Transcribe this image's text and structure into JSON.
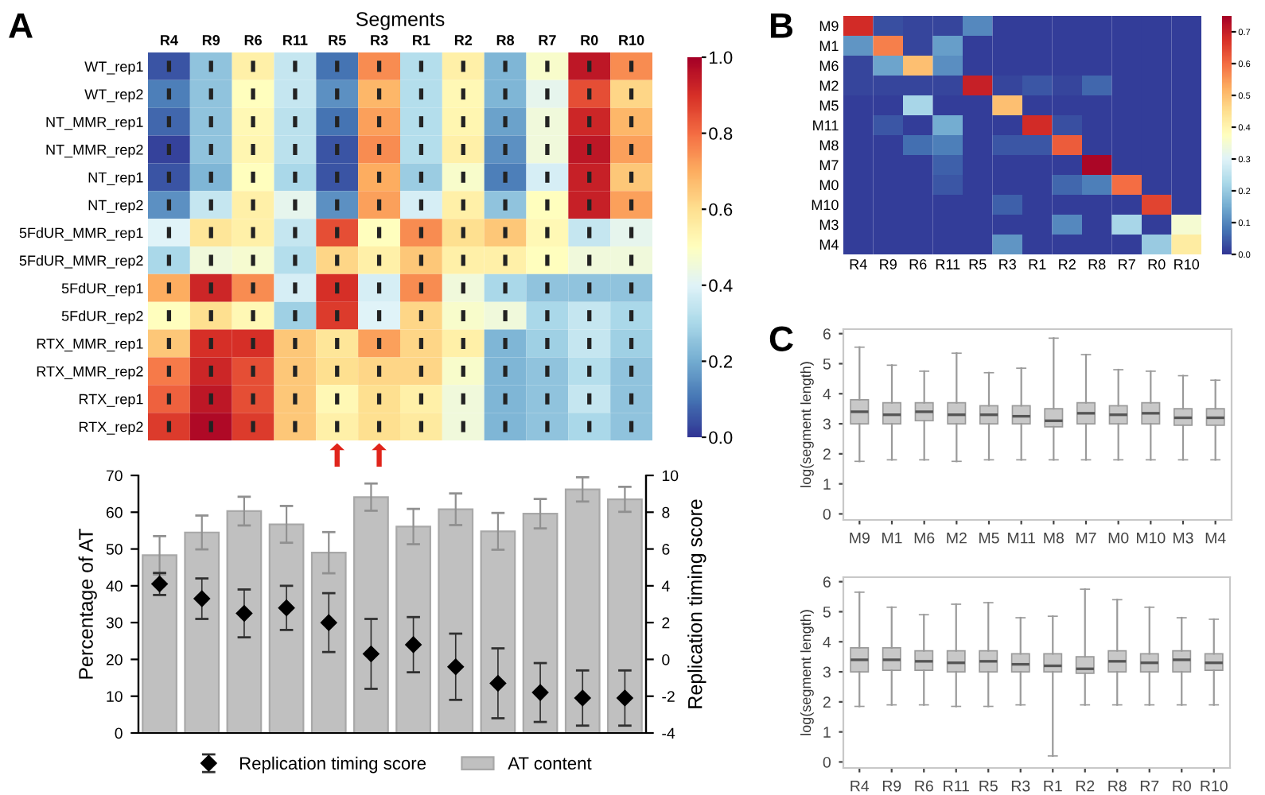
{
  "chart_data": [
    {
      "type": "heatmap",
      "title": "Segments",
      "annotations": [
        "A"
      ],
      "categories": [
        "R4",
        "R9",
        "R6",
        "R11",
        "R5",
        "R3",
        "R1",
        "R2",
        "R8",
        "R7",
        "R0",
        "R10"
      ],
      "y_categories": [
        "WT_rep1",
        "WT_rep2",
        "NT_MMR_rep1",
        "NT_MMR_rep2",
        "NT_rep1",
        "NT_rep2",
        "5FdUR_MMR_rep1",
        "5FdUR_MMR_rep2",
        "5FdUR_rep1",
        "5FdUR_rep2",
        "RTX_MMR_rep1",
        "RTX_MMR_rep2",
        "RTX_rep1",
        "RTX_rep2"
      ],
      "cells": [
        [
          0.05,
          0.25,
          0.55,
          0.35,
          0.1,
          0.75,
          0.32,
          0.55,
          0.22,
          0.48,
          0.95,
          0.75
        ],
        [
          0.12,
          0.25,
          0.5,
          0.35,
          0.15,
          0.68,
          0.32,
          0.52,
          0.22,
          0.42,
          0.85,
          0.62
        ],
        [
          0.08,
          0.25,
          0.52,
          0.33,
          0.1,
          0.72,
          0.32,
          0.53,
          0.18,
          0.45,
          0.92,
          0.68
        ],
        [
          0.02,
          0.25,
          0.53,
          0.33,
          0.05,
          0.75,
          0.32,
          0.55,
          0.15,
          0.45,
          0.95,
          0.72
        ],
        [
          0.05,
          0.22,
          0.5,
          0.3,
          0.05,
          0.7,
          0.27,
          0.48,
          0.12,
          0.38,
          0.93,
          0.65
        ],
        [
          0.15,
          0.35,
          0.55,
          0.42,
          0.15,
          0.72,
          0.38,
          0.55,
          0.25,
          0.5,
          0.93,
          0.72
        ],
        [
          0.4,
          0.58,
          0.55,
          0.35,
          0.85,
          0.5,
          0.75,
          0.6,
          0.65,
          0.52,
          0.35,
          0.42
        ],
        [
          0.3,
          0.45,
          0.47,
          0.32,
          0.62,
          0.55,
          0.65,
          0.55,
          0.55,
          0.5,
          0.45,
          0.45
        ],
        [
          0.7,
          0.92,
          0.75,
          0.38,
          0.9,
          0.38,
          0.75,
          0.45,
          0.3,
          0.25,
          0.25,
          0.25
        ],
        [
          0.5,
          0.6,
          0.52,
          0.28,
          0.88,
          0.4,
          0.62,
          0.48,
          0.45,
          0.3,
          0.35,
          0.3
        ],
        [
          0.65,
          0.9,
          0.9,
          0.65,
          0.58,
          0.72,
          0.62,
          0.55,
          0.22,
          0.28,
          0.35,
          0.28
        ],
        [
          0.78,
          0.92,
          0.85,
          0.65,
          0.6,
          0.62,
          0.62,
          0.48,
          0.22,
          0.25,
          0.32,
          0.25
        ],
        [
          0.82,
          0.95,
          0.85,
          0.65,
          0.52,
          0.6,
          0.55,
          0.45,
          0.22,
          0.25,
          0.35,
          0.25
        ],
        [
          0.88,
          0.98,
          0.88,
          0.65,
          0.55,
          0.6,
          0.57,
          0.45,
          0.22,
          0.25,
          0.3,
          0.25
        ]
      ],
      "clim": [
        0,
        1
      ],
      "cticks": [
        {
          "value": 0,
          "label": "0.0"
        },
        {
          "value": 0.2,
          "label": "0.2"
        },
        {
          "value": 0.4,
          "label": "0.4"
        },
        {
          "value": 0.6,
          "label": "0.6"
        },
        {
          "value": 0.8,
          "label": "0.8"
        },
        {
          "value": 1,
          "label": "1.0"
        }
      ]
    },
    {
      "type": "bar",
      "categories": [
        null,
        null,
        null,
        null,
        null,
        null,
        null,
        null,
        null,
        null,
        null,
        null
      ],
      "ylabel": "Percentage of AT",
      "y2label": "Replication timing score",
      "ylim": [
        0,
        70
      ],
      "yticks": [
        0,
        10,
        20,
        30,
        40,
        50,
        60,
        70
      ],
      "y2lim": [
        -4,
        10
      ],
      "y2ticks": [
        -4,
        -2,
        0,
        2,
        4,
        6,
        8,
        10
      ],
      "legend": "bottom",
      "marker": "diamond",
      "series": [
        {
          "type": "bar",
          "name": "AT content",
          "color": "#c0c0c0",
          "values": [
            48.3,
            54.5,
            60.3,
            56.7,
            49,
            64.1,
            56.1,
            60.8,
            54.8,
            59.6,
            66.2,
            63.5
          ],
          "errors": [
            5.2,
            4.6,
            3.9,
            5,
            5.6,
            3.7,
            4.8,
            4.3,
            5,
            4,
            3.3,
            3.4
          ]
        },
        {
          "type": "scatter",
          "axis": "y2",
          "name": "Replication timing score",
          "color": "#000000",
          "values": [
            4.1,
            3.3,
            2.5,
            2.8,
            2.0,
            0.3,
            0.8,
            -0.4,
            -1.3,
            -1.8,
            -2.1,
            -2.1
          ],
          "errors": [
            0.6,
            1.1,
            1.3,
            1.2,
            1.6,
            1.9,
            1.5,
            1.8,
            1.9,
            1.6,
            1.5,
            1.5
          ]
        }
      ]
    },
    {
      "type": "heatmap",
      "annotations": [
        "B"
      ],
      "categories": [
        "R4",
        "R9",
        "R6",
        "R11",
        "R5",
        "R3",
        "R1",
        "R2",
        "R8",
        "R7",
        "R0",
        "R10"
      ],
      "y_categories": [
        "M9",
        "M1",
        "M6",
        "M2",
        "M5",
        "M11",
        "M8",
        "M7",
        "M0",
        "M10",
        "M3",
        "M4"
      ],
      "cells": [
        [
          0.68,
          0.03,
          0.02,
          0.02,
          0.1,
          0.01,
          0.01,
          0.01,
          0.01,
          0.01,
          0.01,
          0.01
        ],
        [
          0.12,
          0.58,
          0.02,
          0.13,
          0.01,
          0.01,
          0.01,
          0.01,
          0.01,
          0.01,
          0.01,
          0.01
        ],
        [
          0.02,
          0.14,
          0.5,
          0.11,
          0.01,
          0.01,
          0.01,
          0.01,
          0.01,
          0.01,
          0.01,
          0.01
        ],
        [
          0.02,
          0.02,
          0.02,
          0.02,
          0.7,
          0.02,
          0.04,
          0.02,
          0.06,
          0.01,
          0.01,
          0.01
        ],
        [
          0.01,
          0.01,
          0.22,
          0.01,
          0.01,
          0.5,
          0.01,
          0.01,
          0.01,
          0.01,
          0.01,
          0.01
        ],
        [
          0.01,
          0.04,
          0.01,
          0.15,
          0.01,
          0.01,
          0.68,
          0.03,
          0.01,
          0.01,
          0.01,
          0.01
        ],
        [
          0.01,
          0.01,
          0.07,
          0.09,
          0.01,
          0.04,
          0.04,
          0.62,
          0.01,
          0.01,
          0.01,
          0.01
        ],
        [
          0.01,
          0.01,
          0.01,
          0.05,
          0.01,
          0.01,
          0.01,
          0.01,
          0.74,
          0.01,
          0.01,
          0.01
        ],
        [
          0.01,
          0.01,
          0.01,
          0.04,
          0.01,
          0.01,
          0.01,
          0.06,
          0.09,
          0.6,
          0.01,
          0.01
        ],
        [
          0.01,
          0.01,
          0.01,
          0.01,
          0.01,
          0.05,
          0.01,
          0.01,
          0.01,
          0.01,
          0.65,
          0.01
        ],
        [
          0.01,
          0.01,
          0.01,
          0.01,
          0.01,
          0.01,
          0.01,
          0.1,
          0.01,
          0.22,
          0.01,
          0.35
        ],
        [
          0.01,
          0.01,
          0.01,
          0.01,
          0.01,
          0.12,
          0.01,
          0.01,
          0.01,
          0.01,
          0.2,
          0.42
        ]
      ],
      "clim": [
        0,
        0.75
      ],
      "cticks": [
        {
          "value": 0,
          "label": "0.0"
        },
        {
          "value": 0.1,
          "label": "0.1"
        },
        {
          "value": 0.2,
          "label": "0.2"
        },
        {
          "value": 0.3,
          "label": "0.3"
        },
        {
          "value": 0.4,
          "label": "0.4"
        },
        {
          "value": 0.5,
          "label": "0.5"
        },
        {
          "value": 0.6,
          "label": "0.6"
        },
        {
          "value": 0.7,
          "label": "0.7"
        }
      ]
    },
    {
      "type": "box",
      "annotations": [
        "C"
      ],
      "ylabel": "log(segment length)",
      "categories": [
        "M9",
        "M1",
        "M6",
        "M2",
        "M5",
        "M11",
        "M8",
        "M7",
        "M0",
        "M10",
        "M3",
        "M4"
      ],
      "ylim": [
        -0.2,
        6.15
      ],
      "yticks": [
        0,
        1,
        2,
        3,
        4,
        5,
        6
      ],
      "boxes": [
        {
          "low": 1.75,
          "q1": 3.0,
          "median": 3.4,
          "q3": 3.8,
          "high": 5.55
        },
        {
          "low": 1.8,
          "q1": 3.0,
          "median": 3.3,
          "q3": 3.7,
          "high": 4.95
        },
        {
          "low": 1.8,
          "q1": 3.1,
          "median": 3.4,
          "q3": 3.7,
          "high": 4.75
        },
        {
          "low": 1.75,
          "q1": 3.0,
          "median": 3.3,
          "q3": 3.7,
          "high": 5.35
        },
        {
          "low": 1.8,
          "q1": 3.0,
          "median": 3.3,
          "q3": 3.6,
          "high": 4.7
        },
        {
          "low": 1.8,
          "q1": 3.0,
          "median": 3.25,
          "q3": 3.6,
          "high": 4.85
        },
        {
          "low": 1.8,
          "q1": 2.9,
          "median": 3.1,
          "q3": 3.5,
          "high": 5.85
        },
        {
          "low": 1.8,
          "q1": 3.0,
          "median": 3.35,
          "q3": 3.7,
          "high": 5.3
        },
        {
          "low": 1.8,
          "q1": 3.0,
          "median": 3.3,
          "q3": 3.6,
          "high": 4.8
        },
        {
          "low": 1.8,
          "q1": 3.0,
          "median": 3.35,
          "q3": 3.7,
          "high": 4.75
        },
        {
          "low": 1.8,
          "q1": 2.95,
          "median": 3.2,
          "q3": 3.5,
          "high": 4.6
        },
        {
          "low": 1.8,
          "q1": 2.95,
          "median": 3.2,
          "q3": 3.5,
          "high": 4.45
        }
      ]
    },
    {
      "type": "box",
      "ylabel": "log(segment length)",
      "categories": [
        "R4",
        "R9",
        "R6",
        "R11",
        "R5",
        "R3",
        "R1",
        "R2",
        "R8",
        "R7",
        "R0",
        "R10"
      ],
      "ylim": [
        -0.2,
        6.15
      ],
      "yticks": [
        0,
        1,
        2,
        3,
        4,
        5,
        6
      ],
      "boxes": [
        {
          "low": 1.85,
          "q1": 3.0,
          "median": 3.4,
          "q3": 3.8,
          "high": 5.65
        },
        {
          "low": 1.9,
          "q1": 3.05,
          "median": 3.4,
          "q3": 3.8,
          "high": 5.15
        },
        {
          "low": 1.9,
          "q1": 3.05,
          "median": 3.35,
          "q3": 3.7,
          "high": 4.9
        },
        {
          "low": 1.85,
          "q1": 3.0,
          "median": 3.3,
          "q3": 3.7,
          "high": 5.25
        },
        {
          "low": 1.85,
          "q1": 3.0,
          "median": 3.35,
          "q3": 3.7,
          "high": 5.3
        },
        {
          "low": 1.9,
          "q1": 3.0,
          "median": 3.25,
          "q3": 3.6,
          "high": 4.8
        },
        {
          "low": 0.2,
          "q1": 3.0,
          "median": 3.2,
          "q3": 3.6,
          "high": 4.85
        },
        {
          "low": 1.9,
          "q1": 2.95,
          "median": 3.1,
          "q3": 3.5,
          "high": 5.75
        },
        {
          "low": 1.9,
          "q1": 3.0,
          "median": 3.35,
          "q3": 3.7,
          "high": 5.4
        },
        {
          "low": 1.9,
          "q1": 3.0,
          "median": 3.3,
          "q3": 3.6,
          "high": 5.15
        },
        {
          "low": 1.9,
          "q1": 3.0,
          "median": 3.4,
          "q3": 3.7,
          "high": 4.8
        },
        {
          "low": 1.9,
          "q1": 3.05,
          "median": 3.3,
          "q3": 3.6,
          "high": 4.75
        }
      ]
    }
  ]
}
